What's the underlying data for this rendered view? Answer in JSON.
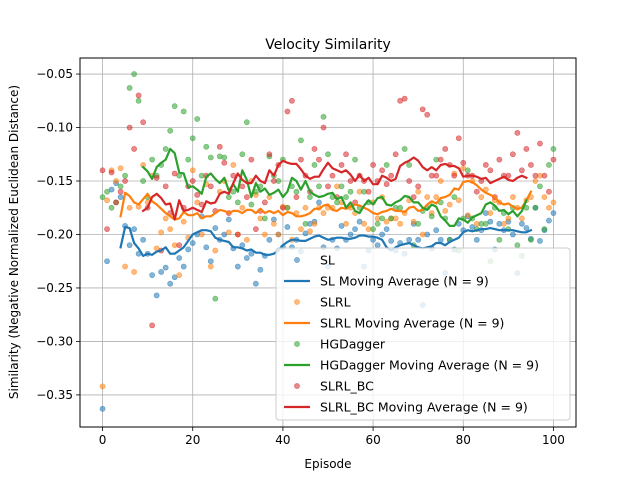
{
  "chart_data": {
    "type": "scatter",
    "title": "Velocity Similarity",
    "xlabel": "Episode",
    "ylabel": "Similarity (Negative Normalized Euclidean Distance)",
    "xlim": [
      -5,
      105
    ],
    "ylim": [
      -0.38,
      -0.035
    ],
    "xticks": [
      0,
      20,
      40,
      60,
      80,
      100
    ],
    "yticks": [
      -0.35,
      -0.3,
      -0.25,
      -0.2,
      -0.15,
      -0.1,
      -0.05
    ],
    "ytick_labels": [
      "−0.35",
      "−0.30",
      "−0.25",
      "−0.20",
      "−0.15",
      "−0.10",
      "−0.05"
    ],
    "grid": true,
    "legend_position": "lower-right",
    "series": [
      {
        "name": "SL",
        "kind": "scatter",
        "color": "#1f77b4",
        "x_start": 0,
        "y": [
          -0.363,
          -0.225,
          -0.158,
          -0.152,
          -0.165,
          -0.192,
          -0.21,
          -0.195,
          -0.218,
          -0.205,
          -0.218,
          -0.238,
          -0.257,
          -0.235,
          -0.231,
          -0.246,
          -0.24,
          -0.222,
          -0.23,
          -0.214,
          -0.208,
          -0.2,
          -0.183,
          -0.212,
          -0.225,
          -0.194,
          -0.205,
          -0.2,
          -0.186,
          -0.213,
          -0.23,
          -0.21,
          -0.222,
          -0.218,
          -0.246,
          -0.233,
          -0.22,
          -0.205,
          -0.186,
          -0.2,
          -0.212,
          -0.193,
          -0.212,
          -0.205,
          -0.216,
          -0.199,
          -0.19,
          -0.188,
          -0.17,
          -0.212,
          -0.23,
          -0.205,
          -0.213,
          -0.192,
          -0.205,
          -0.2,
          -0.195,
          -0.188,
          -0.23,
          -0.215,
          -0.205,
          -0.21,
          -0.2,
          -0.195,
          -0.206,
          -0.215,
          -0.208,
          -0.218,
          -0.205,
          -0.19,
          -0.205,
          -0.266,
          -0.2,
          -0.213,
          -0.196,
          -0.205,
          -0.236,
          -0.205,
          -0.214,
          -0.19,
          -0.196,
          -0.183,
          -0.193,
          -0.205,
          -0.196,
          -0.18,
          -0.188,
          -0.214,
          -0.19,
          -0.196,
          -0.188,
          -0.2,
          -0.236,
          -0.19,
          -0.194,
          -0.204,
          -0.175,
          -0.206,
          -0.196,
          -0.187,
          -0.18
        ]
      },
      {
        "name": "SL Moving Average (N = 9)",
        "kind": "line",
        "color": "#1f77b4",
        "x_start": 4,
        "y": [
          -0.212,
          -0.193,
          -0.194,
          -0.208,
          -0.213,
          -0.22,
          -0.218,
          -0.219,
          -0.216,
          -0.215,
          -0.212,
          -0.218,
          -0.218,
          -0.215,
          -0.212,
          -0.206,
          -0.2,
          -0.198,
          -0.196,
          -0.196,
          -0.197,
          -0.203,
          -0.205,
          -0.206,
          -0.207,
          -0.212,
          -0.212,
          -0.213,
          -0.215,
          -0.214,
          -0.217,
          -0.217,
          -0.219,
          -0.219,
          -0.218,
          -0.215,
          -0.21,
          -0.207,
          -0.205,
          -0.205,
          -0.206,
          -0.206,
          -0.204,
          -0.202,
          -0.201,
          -0.203,
          -0.205,
          -0.204,
          -0.203,
          -0.203,
          -0.204,
          -0.204,
          -0.203,
          -0.201,
          -0.201,
          -0.202,
          -0.202,
          -0.203,
          -0.205,
          -0.212,
          -0.215,
          -0.212,
          -0.21,
          -0.209,
          -0.208,
          -0.21,
          -0.212,
          -0.213,
          -0.212,
          -0.211,
          -0.208,
          -0.208,
          -0.21,
          -0.207,
          -0.205,
          -0.203,
          -0.198,
          -0.196,
          -0.197,
          -0.196,
          -0.195,
          -0.195,
          -0.194,
          -0.195,
          -0.196,
          -0.196,
          -0.196,
          -0.196,
          -0.197,
          -0.198,
          -0.198,
          -0.196
        ]
      },
      {
        "name": "SLRL",
        "kind": "scatter",
        "color": "#ff7f0e",
        "x_start": 0,
        "y": [
          -0.342,
          -0.168,
          -0.14,
          -0.15,
          -0.138,
          -0.23,
          -0.175,
          -0.235,
          -0.174,
          -0.135,
          -0.17,
          -0.145,
          -0.213,
          -0.198,
          -0.185,
          -0.195,
          -0.21,
          -0.238,
          -0.188,
          -0.203,
          -0.14,
          -0.17,
          -0.2,
          -0.153,
          -0.23,
          -0.215,
          -0.16,
          -0.15,
          -0.198,
          -0.135,
          -0.2,
          -0.175,
          -0.205,
          -0.15,
          -0.163,
          -0.185,
          -0.2,
          -0.165,
          -0.19,
          -0.2,
          -0.174,
          -0.175,
          -0.205,
          -0.18,
          -0.195,
          -0.175,
          -0.197,
          -0.19,
          -0.175,
          -0.18,
          -0.175,
          -0.175,
          -0.155,
          -0.17,
          -0.19,
          -0.175,
          -0.18,
          -0.16,
          -0.19,
          -0.195,
          -0.17,
          -0.185,
          -0.165,
          -0.188,
          -0.185,
          -0.185,
          -0.19,
          -0.18,
          -0.168,
          -0.188,
          -0.16,
          -0.2,
          -0.165,
          -0.18,
          -0.165,
          -0.15,
          -0.178,
          -0.172,
          -0.143,
          -0.168,
          -0.138,
          -0.182,
          -0.15,
          -0.19,
          -0.165,
          -0.158,
          -0.18,
          -0.168,
          -0.17,
          -0.19,
          -0.185,
          -0.165,
          -0.175,
          -0.185,
          -0.168,
          -0.165,
          -0.15,
          -0.145,
          -0.165,
          -0.175,
          -0.17
        ]
      },
      {
        "name": "SLRL Moving Average (N = 9)",
        "kind": "line",
        "color": "#ff7f0e",
        "x_start": 4,
        "y": [
          -0.183,
          -0.161,
          -0.164,
          -0.17,
          -0.172,
          -0.167,
          -0.162,
          -0.169,
          -0.172,
          -0.176,
          -0.18,
          -0.183,
          -0.186,
          -0.185,
          -0.179,
          -0.182,
          -0.182,
          -0.18,
          -0.185,
          -0.183,
          -0.183,
          -0.18,
          -0.177,
          -0.178,
          -0.18,
          -0.178,
          -0.178,
          -0.18,
          -0.177,
          -0.177,
          -0.18,
          -0.176,
          -0.18,
          -0.178,
          -0.18,
          -0.178,
          -0.182,
          -0.179,
          -0.18,
          -0.183,
          -0.183,
          -0.182,
          -0.18,
          -0.176,
          -0.176,
          -0.173,
          -0.172,
          -0.177,
          -0.178,
          -0.175,
          -0.176,
          -0.174,
          -0.172,
          -0.173,
          -0.175,
          -0.177,
          -0.18,
          -0.181,
          -0.179,
          -0.178,
          -0.176,
          -0.178,
          -0.178,
          -0.179,
          -0.175,
          -0.174,
          -0.178,
          -0.177,
          -0.172,
          -0.169,
          -0.171,
          -0.166,
          -0.165,
          -0.163,
          -0.157,
          -0.158,
          -0.151,
          -0.15,
          -0.151,
          -0.154,
          -0.158,
          -0.161,
          -0.163,
          -0.165,
          -0.17,
          -0.172,
          -0.171,
          -0.174,
          -0.176,
          -0.175,
          -0.168,
          -0.16
        ]
      },
      {
        "name": "HGDagger",
        "kind": "scatter",
        "color": "#2ca02c",
        "x_start": 0,
        "y": [
          -0.165,
          -0.16,
          -0.175,
          -0.17,
          -0.155,
          -0.145,
          -0.063,
          -0.05,
          -0.075,
          -0.15,
          -0.165,
          -0.13,
          -0.145,
          -0.135,
          -0.12,
          -0.103,
          -0.08,
          -0.145,
          -0.085,
          -0.13,
          -0.11,
          -0.092,
          -0.145,
          -0.118,
          -0.128,
          -0.26,
          -0.127,
          -0.128,
          -0.165,
          -0.16,
          -0.17,
          -0.125,
          -0.095,
          -0.172,
          -0.16,
          -0.155,
          -0.185,
          -0.127,
          -0.145,
          -0.15,
          -0.13,
          -0.175,
          -0.155,
          -0.16,
          -0.112,
          -0.19,
          -0.165,
          -0.135,
          -0.155,
          -0.09,
          -0.125,
          -0.165,
          -0.17,
          -0.155,
          -0.165,
          -0.16,
          -0.13,
          -0.175,
          -0.16,
          -0.17,
          -0.195,
          -0.19,
          -0.185,
          -0.135,
          -0.185,
          -0.175,
          -0.175,
          -0.12,
          -0.135,
          -0.21,
          -0.19,
          -0.178,
          -0.175,
          -0.183,
          -0.13,
          -0.17,
          -0.185,
          -0.205,
          -0.165,
          -0.215,
          -0.185,
          -0.14,
          -0.185,
          -0.195,
          -0.19,
          -0.19,
          -0.225,
          -0.175,
          -0.205,
          -0.18,
          -0.195,
          -0.175,
          -0.21,
          -0.22,
          -0.175,
          -0.205,
          -0.175,
          -0.155,
          -0.195,
          -0.135,
          -0.12
        ]
      },
      {
        "name": "HGDagger Moving Average (N = 9)",
        "kind": "line",
        "color": "#2ca02c",
        "x_start": 9,
        "y": [
          -0.137,
          -0.141,
          -0.148,
          -0.137,
          -0.133,
          -0.13,
          -0.12,
          -0.124,
          -0.142,
          -0.143,
          -0.156,
          -0.155,
          -0.158,
          -0.162,
          -0.146,
          -0.143,
          -0.148,
          -0.152,
          -0.147,
          -0.159,
          -0.153,
          -0.16,
          -0.14,
          -0.149,
          -0.165,
          -0.152,
          -0.16,
          -0.157,
          -0.163,
          -0.161,
          -0.158,
          -0.165,
          -0.16,
          -0.147,
          -0.15,
          -0.158,
          -0.15,
          -0.16,
          -0.163,
          -0.165,
          -0.164,
          -0.162,
          -0.161,
          -0.167,
          -0.165,
          -0.175,
          -0.17,
          -0.178,
          -0.18,
          -0.173,
          -0.168,
          -0.172,
          -0.166,
          -0.165,
          -0.172,
          -0.173,
          -0.17,
          -0.168,
          -0.164,
          -0.165,
          -0.17,
          -0.17,
          -0.175,
          -0.177,
          -0.172,
          -0.174,
          -0.183,
          -0.187,
          -0.192,
          -0.192,
          -0.185,
          -0.186,
          -0.189,
          -0.184,
          -0.182,
          -0.18,
          -0.172,
          -0.17,
          -0.173,
          -0.178,
          -0.177,
          -0.181,
          -0.178,
          -0.183,
          -0.178,
          -0.168
        ]
      },
      {
        "name": "SLRL_BC",
        "kind": "scatter",
        "color": "#d62728",
        "x_start": 0,
        "y": [
          -0.14,
          -0.195,
          -0.142,
          -0.17,
          -0.16,
          -0.15,
          -0.1,
          -0.12,
          -0.07,
          -0.095,
          -0.175,
          -0.285,
          -0.147,
          -0.215,
          -0.155,
          -0.18,
          -0.143,
          -0.21,
          -0.175,
          -0.155,
          -0.15,
          -0.163,
          -0.172,
          -0.145,
          -0.155,
          -0.178,
          -0.118,
          -0.133,
          -0.18,
          -0.145,
          -0.2,
          -0.155,
          -0.165,
          -0.13,
          -0.195,
          -0.178,
          -0.17,
          -0.125,
          -0.15,
          -0.135,
          -0.175,
          -0.085,
          -0.075,
          -0.165,
          -0.13,
          -0.145,
          -0.16,
          -0.12,
          -0.13,
          -0.1,
          -0.155,
          -0.145,
          -0.165,
          -0.135,
          -0.125,
          -0.15,
          -0.17,
          -0.145,
          -0.15,
          -0.16,
          -0.135,
          -0.15,
          -0.14,
          -0.153,
          -0.145,
          -0.125,
          -0.075,
          -0.073,
          -0.15,
          -0.165,
          -0.155,
          -0.083,
          -0.088,
          -0.145,
          -0.145,
          -0.13,
          -0.12,
          -0.135,
          -0.145,
          -0.11,
          -0.133,
          -0.145,
          -0.145,
          -0.16,
          -0.15,
          -0.135,
          -0.14,
          -0.165,
          -0.13,
          -0.145,
          -0.145,
          -0.125,
          -0.105,
          -0.14,
          -0.12,
          -0.135,
          -0.145,
          -0.115,
          -0.145,
          -0.16,
          -0.13
        ]
      },
      {
        "name": "SLRL_BC Moving Average (N = 9)",
        "kind": "line",
        "color": "#d62728",
        "x_start": 9,
        "y": [
          -0.178,
          -0.175,
          -0.165,
          -0.162,
          -0.166,
          -0.172,
          -0.171,
          -0.186,
          -0.168,
          -0.178,
          -0.177,
          -0.175,
          -0.177,
          -0.179,
          -0.169,
          -0.171,
          -0.17,
          -0.162,
          -0.16,
          -0.162,
          -0.152,
          -0.143,
          -0.149,
          -0.152,
          -0.152,
          -0.145,
          -0.15,
          -0.152,
          -0.14,
          -0.145,
          -0.135,
          -0.131,
          -0.133,
          -0.134,
          -0.134,
          -0.139,
          -0.145,
          -0.148,
          -0.146,
          -0.146,
          -0.139,
          -0.133,
          -0.138,
          -0.14,
          -0.142,
          -0.14,
          -0.144,
          -0.15,
          -0.144,
          -0.15,
          -0.147,
          -0.153,
          -0.153,
          -0.145,
          -0.147,
          -0.15,
          -0.148,
          -0.136,
          -0.133,
          -0.131,
          -0.128,
          -0.131,
          -0.137,
          -0.14,
          -0.137,
          -0.14,
          -0.135,
          -0.134,
          -0.136,
          -0.136,
          -0.138,
          -0.146,
          -0.145,
          -0.145,
          -0.146,
          -0.148,
          -0.147,
          -0.152,
          -0.15,
          -0.148,
          -0.146,
          -0.149,
          -0.15,
          -0.147,
          -0.145,
          -0.147
        ]
      }
    ]
  }
}
